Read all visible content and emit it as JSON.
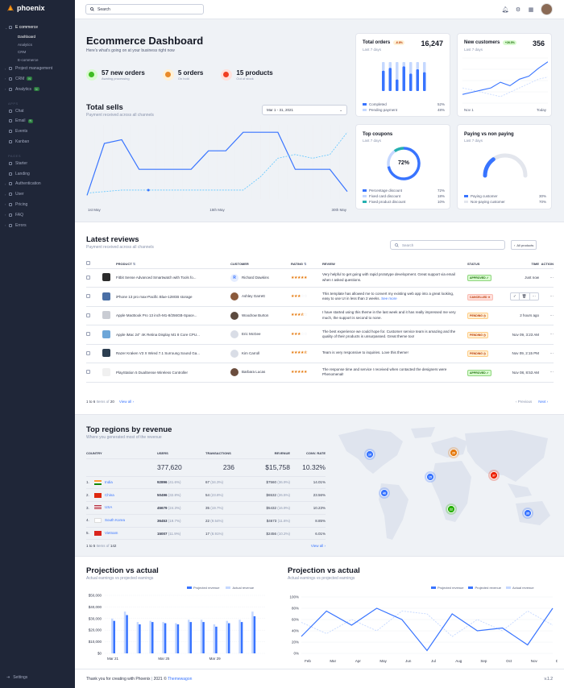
{
  "brand": {
    "name": "phoenix"
  },
  "sidebar": {
    "items": [
      {
        "label": "E commerce",
        "type": "parent",
        "active": true
      },
      {
        "label": "Dashboard",
        "type": "sub",
        "active": true
      },
      {
        "label": "Analytics",
        "type": "sub"
      },
      {
        "label": "CRM",
        "type": "sub"
      },
      {
        "label": "E-commerce",
        "type": "sub"
      },
      {
        "label": "Project management",
        "type": "parent"
      },
      {
        "label": "CRM",
        "type": "parent",
        "badge": "N"
      },
      {
        "label": "Analytics",
        "type": "parent",
        "badge": "N"
      },
      {
        "label": "APPS",
        "type": "label"
      },
      {
        "label": "Chat",
        "type": "item"
      },
      {
        "label": "Email",
        "type": "item",
        "badge": "N"
      },
      {
        "label": "Events",
        "type": "item"
      },
      {
        "label": "Kanban",
        "type": "item"
      },
      {
        "label": "PAGES",
        "type": "label"
      },
      {
        "label": "Starter",
        "type": "item"
      },
      {
        "label": "Landing",
        "type": "item"
      },
      {
        "label": "Authentication",
        "type": "parent"
      },
      {
        "label": "User",
        "type": "parent"
      },
      {
        "label": "Pricing",
        "type": "parent"
      },
      {
        "label": "FAQ",
        "type": "parent"
      },
      {
        "label": "Errors",
        "type": "parent"
      }
    ],
    "settings_label": "Settings"
  },
  "topbar": {
    "search_placeholder": "Search"
  },
  "dashboard": {
    "title": "Ecommerce Dashboard",
    "subtitle": "Here's what's going on at your business right now",
    "stats": [
      {
        "value": "57 new orders",
        "label": "Awating processing",
        "color": "#25b003",
        "bg": "#d9fbd0"
      },
      {
        "value": "5 orders",
        "label": "On hold",
        "color": "#e5780b",
        "bg": "#fff1d6"
      },
      {
        "value": "15 products",
        "label": "Out of stock",
        "color": "#ed2000",
        "bg": "#ffe0db"
      }
    ]
  },
  "total_sells": {
    "title": "Total sells",
    "subtitle": "Payment received across all channels",
    "range": "Mar 1 - 31, 2021",
    "x_labels": [
      "1st May",
      "15th May",
      "30th May"
    ]
  },
  "total_orders": {
    "title": "Total orders",
    "badge": "-6.8%",
    "value": "16,247",
    "period": "Last 7 days",
    "legend": [
      {
        "label": "Completed",
        "value": "52%",
        "color": "#3874ff"
      },
      {
        "label": "Pending payment",
        "value": "48%",
        "color": "#c5d8ff"
      }
    ]
  },
  "new_customers": {
    "title": "New customers",
    "badge": "+26.5%",
    "value": "356",
    "period": "Last 7 days",
    "x_labels": [
      "Nov 1",
      "Today"
    ]
  },
  "top_coupons": {
    "title": "Top coupons",
    "period": "Last 7 days",
    "center": "72%",
    "legend": [
      {
        "label": "Percentage discount",
        "value": "72%",
        "color": "#3874ff"
      },
      {
        "label": "Fixed card discount",
        "value": "18%",
        "color": "#c5d8ff"
      },
      {
        "label": "Fixed product discount",
        "value": "10%",
        "color": "#25b0b0"
      }
    ]
  },
  "paying": {
    "title": "Paying vs non paying",
    "period": "Last 7 days",
    "legend": [
      {
        "label": "Paying customer",
        "value": "30%",
        "color": "#3874ff"
      },
      {
        "label": "Non-paying customer",
        "value": "70%",
        "color": "#e3e6ed"
      }
    ]
  },
  "reviews": {
    "title": "Latest reviews",
    "subtitle": "Payment received across all channels",
    "search_placeholder": "Search",
    "filter_label": "All products",
    "columns": [
      "PRODUCT",
      "CUSTOMER",
      "RATING",
      "REVIEW",
      "STATUS",
      "TIME",
      "ACTION"
    ],
    "rows": [
      {
        "product": "Fitbit Sense Advanced Smartwatch with Tools fo...",
        "customer": "Richard Dawkins",
        "initial": "R",
        "rating": 5,
        "review": "Very helpful to get going with rapid prototype development. Great support via email when I asked questions.",
        "more": "",
        "status": "APPROVED",
        "time": "Just now"
      },
      {
        "product": "iPhone 13 pro max-Pacific Blue-128GB storage",
        "customer": "Ashley Garrett",
        "initial": "",
        "rating": 3,
        "review": "This template has allowed me to convert my existing web app into a great looking, easy to use UI in less than 2 weeks.",
        "more": "See more",
        "status": "CANCELLED",
        "time": ""
      },
      {
        "product": "Apple MacBook Pro 13 inch-M1-8/256GB-Space...",
        "customer": "Woodrow Burton",
        "initial": "",
        "rating": 3.5,
        "review": "I have started using this theme in the last week and it has really impressed me very much, the support is second to none.",
        "more": "",
        "status": "PENDING",
        "time": "2 hours ago"
      },
      {
        "product": "Apple iMac 24\" 4K Retina Display M1 8 Core CPU...",
        "customer": "Eric McGee",
        "initial": "",
        "rating": 3,
        "review": "The best experience we could hope for. Customer service team is amazing and the quality of their products is unsurpassed. Great theme too!",
        "more": "",
        "status": "PENDING",
        "time": "Nov 09, 3:23 AM"
      },
      {
        "product": "Razer Kraken V3 X Wired 7.1 Surroung Sound Ga...",
        "customer": "Kim Carroll",
        "initial": "",
        "rating": 4.5,
        "review": "Team is very responsive to inquiries. Love this theme!",
        "more": "",
        "status": "PENDING",
        "time": "Nov 09, 2:15 PM"
      },
      {
        "product": "PlayStation 5 DualSense Wireless Controller",
        "customer": "Barbara Lucas",
        "initial": "",
        "rating": 5,
        "review": "The response time and service I received when contacted the designers were Phenomenal!",
        "more": "",
        "status": "APPROVED",
        "time": "Nov 08, 8:53 AM"
      }
    ],
    "pager": {
      "range": "1 to 6",
      "of_text": "Items of",
      "total": "20",
      "view_all": "View all",
      "prev": "Previous",
      "next": "Next"
    }
  },
  "regions": {
    "title": "Top regions by revenue",
    "subtitle": "Where you generated most of the revenue",
    "columns": [
      "COUNTRY",
      "USERS",
      "TRANSACTIONS",
      "REVENUE",
      "CONV. RATE"
    ],
    "totals": {
      "users": "377,620",
      "transactions": "236",
      "revenue": "$15,758",
      "conv": "10.32%"
    },
    "rows": [
      {
        "n": "1.",
        "country": "India",
        "users": "92896",
        "users_pct": "(41.6%)",
        "trans": "67",
        "trans_pct": "(34.3%)",
        "rev": "$7560",
        "rev_pct": "(36.9%)",
        "conv": "14.01%"
      },
      {
        "n": "2.",
        "country": "China",
        "users": "50496",
        "users_pct": "(32.8%)",
        "trans": "54",
        "trans_pct": "(23.8%)",
        "rev": "$6532",
        "rev_pct": "(26.5%)",
        "conv": "23.56%"
      },
      {
        "n": "3.",
        "country": "USA",
        "users": "45679",
        "users_pct": "(24.3%)",
        "trans": "35",
        "trans_pct": "(19.7%)",
        "rev": "$5432",
        "rev_pct": "(16.9%)",
        "conv": "10.23%"
      },
      {
        "n": "4.",
        "country": "South Korea",
        "users": "36453",
        "users_pct": "(19.7%)",
        "trans": "22",
        "trans_pct": "(9.54%)",
        "rev": "$4673",
        "rev_pct": "(11.6%)",
        "conv": "8.85%"
      },
      {
        "n": "5.",
        "country": "Vietnam",
        "users": "15007",
        "users_pct": "(11.9%)",
        "trans": "17",
        "trans_pct": "(8.91%)",
        "rev": "$2456",
        "rev_pct": "(10.2%)",
        "conv": "6.01%"
      }
    ],
    "pager": {
      "range": "1 to 5",
      "of_text": "Items of",
      "total": "142",
      "view_all": "View all"
    },
    "map_markers": [
      {
        "label": "10",
        "color": "#3874ff"
      },
      {
        "label": "20",
        "color": "#e5780b"
      },
      {
        "label": "15",
        "color": "#3874ff"
      },
      {
        "label": "37",
        "color": "#ed2000"
      },
      {
        "label": "40",
        "color": "#3874ff"
      },
      {
        "label": "22",
        "color": "#25b003"
      },
      {
        "label": "35",
        "color": "#3874ff"
      }
    ]
  },
  "projection_bar": {
    "title": "Projection vs actual",
    "subtitle": "Actual earnings vs projected earnings",
    "legend": [
      {
        "label": "Projected revenue",
        "color": "#3874ff"
      },
      {
        "label": "Actual revenue",
        "color": "#c5d8ff"
      }
    ]
  },
  "projection_line": {
    "title": "Projection vs actual",
    "subtitle": "Actual earnings vs projected earnings",
    "legend": [
      {
        "label": "Projected revenue",
        "color": "#3874ff"
      },
      {
        "label": "Projected revenue",
        "color": "#3874ff"
      },
      {
        "label": "Actual revenue",
        "color": "#c5d8ff"
      }
    ]
  },
  "chart_data": [
    {
      "type": "line",
      "title": "Total sells",
      "x": [
        1,
        3,
        5,
        7,
        9,
        11,
        13,
        15,
        17,
        19,
        21,
        23,
        25,
        27,
        29,
        31
      ],
      "series": [
        {
          "values": [
            5,
            75,
            80,
            40,
            40,
            40,
            40,
            65,
            65,
            90,
            90,
            90,
            40,
            40,
            40,
            10
          ]
        },
        {
          "values": [
            8,
            10,
            12,
            12,
            12,
            12,
            12,
            12,
            12,
            12,
            30,
            55,
            60,
            55,
            60,
            90
          ]
        }
      ],
      "x_labels": [
        "1st May",
        "15th May",
        "30th May"
      ]
    },
    {
      "type": "bar",
      "title": "Total orders",
      "series": [
        {
          "name": "Completed",
          "values": [
            70,
            80,
            40,
            85,
            60,
            75,
            65
          ]
        },
        {
          "name": "Pending payment",
          "values": [
            30,
            20,
            60,
            15,
            40,
            25,
            35
          ]
        }
      ]
    },
    {
      "type": "line",
      "title": "New customers",
      "series": [
        {
          "values": [
            20,
            25,
            30,
            35,
            48,
            40,
            55,
            62,
            80,
            95
          ]
        },
        {
          "values": [
            35,
            30,
            25,
            20,
            15,
            25,
            35,
            45,
            55,
            60
          ]
        }
      ]
    },
    {
      "type": "pie",
      "title": "Top coupons",
      "values": [
        72,
        18,
        10
      ],
      "categories": [
        "Percentage discount",
        "Fixed card discount",
        "Fixed product discount"
      ]
    },
    {
      "type": "pie",
      "title": "Paying vs non paying",
      "values": [
        30,
        70
      ],
      "categories": [
        "Paying customer",
        "Non-paying customer"
      ]
    },
    {
      "type": "bar",
      "title": "Projection vs actual",
      "categories": [
        "Mar 21",
        "",
        "",
        "",
        "Mar 25",
        "",
        "",
        "",
        "Mar 29",
        "",
        "",
        ""
      ],
      "series": [
        {
          "name": "Projected revenue",
          "values": [
            28000,
            33000,
            25000,
            27000,
            26000,
            25000,
            27000,
            27000,
            23000,
            26000,
            27000,
            32000
          ]
        },
        {
          "name": "Actual revenue",
          "values": [
            30000,
            36000,
            27000,
            28000,
            27000,
            26000,
            29000,
            29000,
            25000,
            28000,
            29000,
            36000
          ]
        }
      ],
      "y_ticks": [
        "$0",
        "$10,000",
        "$20,000",
        "$30,000",
        "$40,000",
        "$50,000"
      ],
      "x_labels": [
        "Mar 21",
        "Mar 25",
        "Mar 29"
      ],
      "ylim": [
        0,
        50000
      ]
    },
    {
      "type": "line",
      "title": "Projection vs actual",
      "categories": [
        "Feb",
        "Mar",
        "Apr",
        "May",
        "Jun",
        "Jul",
        "Aug",
        "Sep",
        "Oct",
        "Nov",
        "Dec"
      ],
      "series": [
        {
          "name": "Projected revenue",
          "values": [
            30,
            75,
            50,
            80,
            60,
            5,
            70,
            40,
            45,
            15,
            80
          ]
        },
        {
          "name": "Actual revenue",
          "values": [
            55,
            35,
            60,
            40,
            75,
            70,
            30,
            60,
            40,
            75,
            50
          ]
        }
      ],
      "y_ticks": [
        "0%",
        "20%",
        "40%",
        "60%",
        "80%",
        "100%"
      ],
      "ylim": [
        0,
        100
      ]
    }
  ]
}
